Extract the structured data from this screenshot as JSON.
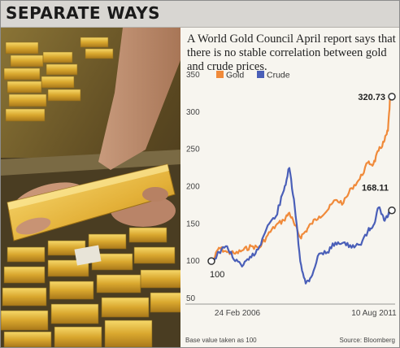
{
  "header": {
    "title": "SEPARATE WAYS"
  },
  "subtitle": "A World Gold Council April report says that there is no stable correlation between gold and crude prices.",
  "footnotes": {
    "base_note": "Base value taken as 100",
    "source": "Source: Bloomberg"
  },
  "colors": {
    "gold": "#f08a3a",
    "crude": "#4a5fb8"
  },
  "chart_data": {
    "type": "line",
    "title": "",
    "xlabel": "",
    "ylabel": "",
    "ylim": [
      50,
      350
    ],
    "yticks": [
      50,
      100,
      150,
      200,
      250,
      300,
      350
    ],
    "x_tick_labels": [
      "24 Feb 2006",
      "10 Aug 2011"
    ],
    "x_range": [
      "2006-02-24",
      "2011-08-10"
    ],
    "legend": {
      "placement": "top-left",
      "entries": [
        "Gold",
        "Crude"
      ]
    },
    "annotations": {
      "start_value": "100",
      "gold_end": "320.73",
      "crude_end": "168.11"
    },
    "grid": false,
    "x": [
      "2006-02-24",
      "2006-05-01",
      "2006-08-01",
      "2006-11-01",
      "2007-02-01",
      "2007-05-01",
      "2007-08-01",
      "2007-11-01",
      "2008-02-01",
      "2008-05-01",
      "2008-07-01",
      "2008-09-01",
      "2008-11-01",
      "2009-01-01",
      "2009-03-01",
      "2009-06-01",
      "2009-09-01",
      "2009-12-01",
      "2010-03-01",
      "2010-06-01",
      "2010-09-01",
      "2010-12-01",
      "2011-02-01",
      "2011-04-01",
      "2011-06-01",
      "2011-07-15",
      "2011-08-10"
    ],
    "series": [
      {
        "name": "Gold",
        "values": [
          100,
          118,
          112,
          110,
          115,
          120,
          118,
          135,
          148,
          155,
          165,
          148,
          132,
          140,
          150,
          160,
          168,
          182,
          178,
          198,
          210,
          232,
          230,
          248,
          260,
          275,
          320.73
        ]
      },
      {
        "name": "Crude",
        "values": [
          100,
          112,
          120,
          100,
          95,
          105,
          120,
          148,
          160,
          195,
          225,
          172,
          100,
          70,
          78,
          110,
          112,
          125,
          125,
          118,
          122,
          140,
          148,
          172,
          155,
          160,
          168.11
        ]
      }
    ]
  }
}
